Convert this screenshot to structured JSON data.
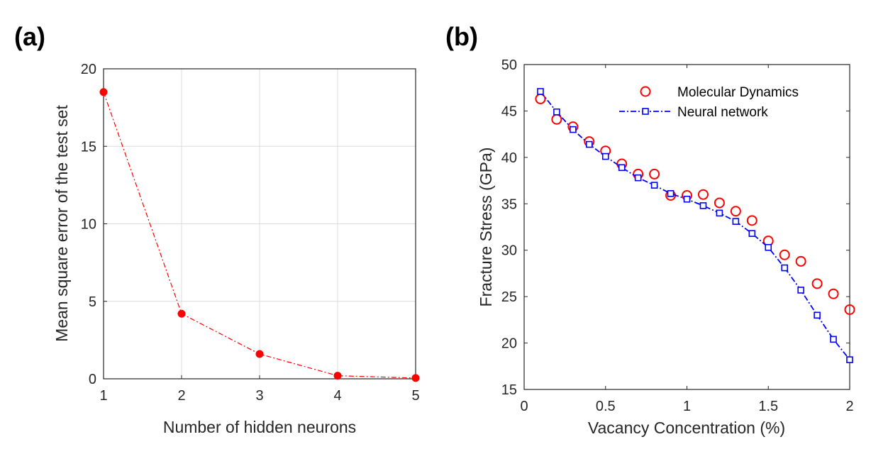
{
  "chart_data": [
    {
      "panel_label": "(a)",
      "type": "line",
      "title": "",
      "xlabel": "Number of hidden neurons",
      "ylabel": "Mean square error of the test set",
      "xlim": [
        1,
        5
      ],
      "ylim": [
        0,
        20
      ],
      "xticks": [
        1,
        2,
        3,
        4,
        5
      ],
      "yticks": [
        0,
        5,
        10,
        15,
        20
      ],
      "grid": true,
      "legend": null,
      "series": [
        {
          "x": [
            1,
            2,
            3,
            4,
            5
          ],
          "values": [
            18.5,
            4.2,
            1.6,
            0.2,
            0.05
          ],
          "color": "#ff0000",
          "line_style": "dash-dot",
          "marker": "filled-circle"
        }
      ]
    },
    {
      "panel_label": "(b)",
      "type": "line",
      "title": "",
      "xlabel": "Vacancy Concentration (%)",
      "ylabel": "Fracture Stress (GPa)",
      "xlim": [
        0,
        2
      ],
      "ylim": [
        15,
        50
      ],
      "xticks": [
        0,
        0.5,
        1,
        1.5,
        2
      ],
      "yticks": [
        15,
        20,
        25,
        30,
        35,
        40,
        45,
        50
      ],
      "grid": false,
      "legend": "top-right",
      "x": [
        0.1,
        0.2,
        0.3,
        0.4,
        0.5,
        0.6,
        0.7,
        0.8,
        0.9,
        1.0,
        1.1,
        1.2,
        1.3,
        1.4,
        1.5,
        1.6,
        1.7,
        1.8,
        1.9,
        2.0
      ],
      "series": [
        {
          "name": "Molecular Dynamics",
          "values": [
            46.3,
            44.1,
            43.3,
            41.7,
            40.7,
            39.3,
            38.2,
            38.2,
            35.9,
            35.9,
            36.0,
            35.1,
            34.2,
            33.2,
            31.0,
            29.5,
            28.8,
            26.4,
            25.3,
            23.6
          ],
          "color": "#ff0000",
          "line_style": "none",
          "marker": "open-circle"
        },
        {
          "name": "Neural network",
          "values": [
            47.1,
            44.9,
            43.0,
            41.4,
            40.1,
            38.9,
            37.8,
            37.0,
            36.1,
            35.5,
            34.8,
            34.0,
            33.1,
            31.8,
            30.3,
            28.1,
            25.7,
            23.0,
            20.4,
            18.2
          ],
          "color": "#0000ff",
          "line_style": "dash-dot",
          "marker": "open-square"
        }
      ]
    }
  ]
}
